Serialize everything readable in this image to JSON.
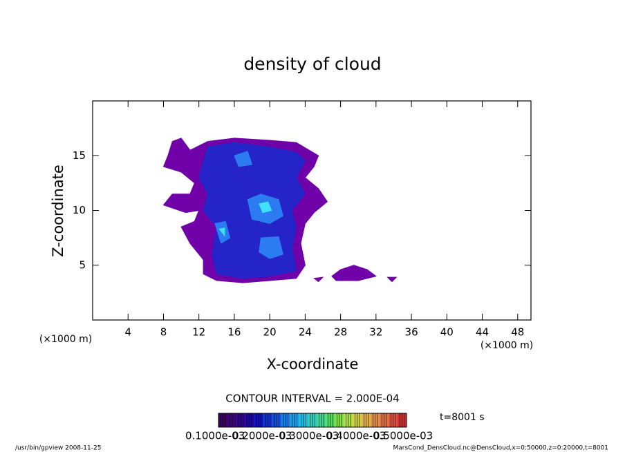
{
  "chart_data": {
    "type": "contour",
    "title": "density of cloud",
    "x_label": "X-coordinate",
    "y_label": "Z-coordinate",
    "x_unit": "(×1000 m)",
    "y_unit": "(×1000 m)",
    "xlim": [
      0,
      49.5
    ],
    "ylim": [
      0,
      20
    ],
    "xticks": [
      4,
      8,
      12,
      16,
      20,
      24,
      28,
      32,
      36,
      40,
      44,
      48
    ],
    "yticks": [
      5,
      10,
      15
    ],
    "level_colors": [
      "#7000a8",
      "#2424c8",
      "#2a7cf0",
      "#40e0ff"
    ],
    "regions": [
      {
        "level": 0,
        "points": [
          [
            9,
            16.3
          ],
          [
            10,
            16.6
          ],
          [
            11,
            15.5
          ],
          [
            13,
            16.3
          ],
          [
            16,
            16.6
          ],
          [
            20,
            16.4
          ],
          [
            23,
            16.2
          ],
          [
            25.5,
            15
          ],
          [
            25,
            14
          ],
          [
            24,
            13
          ],
          [
            25.5,
            12
          ],
          [
            26.5,
            10.8
          ],
          [
            25,
            9.8
          ],
          [
            24,
            8.8
          ],
          [
            23.5,
            7
          ],
          [
            24,
            5
          ],
          [
            23,
            3.8
          ],
          [
            20,
            3.6
          ],
          [
            17,
            3.4
          ],
          [
            14,
            3.6
          ],
          [
            12.5,
            4.2
          ],
          [
            12.5,
            5.5
          ],
          [
            11,
            7
          ],
          [
            10,
            8.5
          ],
          [
            11.5,
            9
          ],
          [
            12,
            10
          ],
          [
            10.5,
            9.8
          ],
          [
            8,
            10.5
          ],
          [
            9,
            11.5
          ],
          [
            11,
            11.5
          ],
          [
            11.5,
            12.5
          ],
          [
            10,
            13.5
          ],
          [
            8,
            14
          ],
          [
            8.5,
            15
          ]
        ]
      },
      {
        "level": 0,
        "points": [
          [
            27,
            4
          ],
          [
            28,
            4.6
          ],
          [
            29.5,
            5
          ],
          [
            31,
            4.6
          ],
          [
            32,
            4
          ],
          [
            30,
            3.6
          ],
          [
            27.5,
            3.6
          ]
        ]
      },
      {
        "level": 0,
        "points": [
          [
            25,
            3.8
          ],
          [
            26,
            3.9
          ],
          [
            25.5,
            3.5
          ]
        ]
      },
      {
        "level": 0,
        "points": [
          [
            33.3,
            3.9
          ],
          [
            34.3,
            3.9
          ],
          [
            33.8,
            3.5
          ]
        ]
      },
      {
        "level": 1,
        "points": [
          [
            13,
            15.8
          ],
          [
            16,
            16.2
          ],
          [
            20,
            15.8
          ],
          [
            23,
            15.3
          ],
          [
            24,
            14.5
          ],
          [
            23,
            13
          ],
          [
            24,
            11.5
          ],
          [
            22.5,
            10
          ],
          [
            23,
            8.5
          ],
          [
            22.5,
            6.5
          ],
          [
            23,
            4.5
          ],
          [
            20,
            4
          ],
          [
            17,
            3.8
          ],
          [
            14,
            4.2
          ],
          [
            13.5,
            6
          ],
          [
            14,
            8.5
          ],
          [
            12.5,
            10
          ],
          [
            13,
            11.5
          ],
          [
            12,
            13
          ],
          [
            12.5,
            14.5
          ]
        ]
      },
      {
        "level": 2,
        "points": [
          [
            17.5,
            11
          ],
          [
            19,
            11.5
          ],
          [
            21,
            11
          ],
          [
            21.5,
            9.5
          ],
          [
            20,
            8.8
          ],
          [
            18,
            9.2
          ]
        ]
      },
      {
        "level": 2,
        "points": [
          [
            13.8,
            8.8
          ],
          [
            15,
            9
          ],
          [
            15.5,
            7.5
          ],
          [
            14.5,
            7
          ]
        ]
      },
      {
        "level": 2,
        "points": [
          [
            19,
            7.5
          ],
          [
            21,
            7.6
          ],
          [
            21.5,
            6
          ],
          [
            20,
            5.6
          ],
          [
            18.8,
            6.2
          ]
        ]
      },
      {
        "level": 2,
        "points": [
          [
            16,
            15
          ],
          [
            17.5,
            15.4
          ],
          [
            18,
            14.2
          ],
          [
            16.5,
            14
          ]
        ]
      },
      {
        "level": 3,
        "points": [
          [
            18.8,
            10.6
          ],
          [
            19.8,
            10.8
          ],
          [
            20.2,
            10
          ],
          [
            19.2,
            9.8
          ]
        ]
      },
      {
        "level": 3,
        "points": [
          [
            14.3,
            8.3
          ],
          [
            14.9,
            8.4
          ],
          [
            14.9,
            7.7
          ]
        ]
      }
    ],
    "contour_interval": "CONTOUR INTERVAL = 2.000E-04",
    "time_label": "t=8001 s",
    "colorbar_colors": [
      "#3a0060",
      "#40007a",
      "#300090",
      "#2000a8",
      "#1010c0",
      "#1030d0",
      "#1050e0",
      "#1080f0",
      "#10a0f0",
      "#20c0e0",
      "#30d0c0",
      "#40d890",
      "#50e060",
      "#80e040",
      "#b0e040",
      "#d0d040",
      "#e0b040",
      "#e09040",
      "#e07040",
      "#e05040",
      "#d03030"
    ],
    "colorbar_labels": [
      "0.1000e-03",
      "0.2000e-03",
      "0.3000e-03",
      "0.4000e-03",
      "0.5000e-03"
    ],
    "footer_left": "/usr/bin/gpview  2008-11-25",
    "footer_right": "MarsCond_DensCloud.nc@DensCloud,x=0:50000,z=0:20000,t=8001"
  }
}
